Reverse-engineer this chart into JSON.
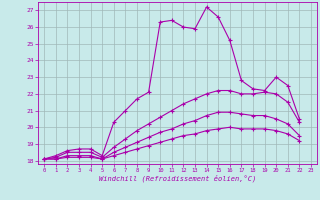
{
  "xlabel": "Windchill (Refroidissement éolien,°C)",
  "bg_color": "#c8eaea",
  "grid_color": "#a0b8b8",
  "line_color": "#aa00aa",
  "ylim": [
    17.8,
    27.5
  ],
  "xlim": [
    -0.5,
    23.5
  ],
  "yticks": [
    18,
    19,
    20,
    21,
    22,
    23,
    24,
    25,
    26,
    27
  ],
  "xticks": [
    0,
    1,
    2,
    3,
    4,
    5,
    6,
    7,
    8,
    9,
    10,
    11,
    12,
    13,
    14,
    15,
    16,
    17,
    18,
    19,
    20,
    21,
    22,
    23
  ],
  "series": [
    {
      "x": [
        0,
        1,
        2,
        3,
        4,
        5,
        6,
        7,
        8,
        9,
        10,
        11,
        12,
        13,
        14,
        15,
        16,
        17,
        18,
        19,
        20,
        21,
        22
      ],
      "y": [
        18.1,
        18.3,
        18.6,
        18.7,
        18.7,
        18.3,
        20.3,
        21.0,
        21.7,
        22.1,
        26.3,
        26.4,
        26.0,
        25.9,
        27.2,
        26.6,
        25.2,
        22.8,
        22.3,
        22.2,
        23.0,
        22.5,
        20.5
      ]
    },
    {
      "x": [
        0,
        1,
        2,
        3,
        4,
        5,
        6,
        7,
        8,
        9,
        10,
        11,
        12,
        13,
        14,
        15,
        16,
        17,
        18,
        19,
        20,
        21,
        22
      ],
      "y": [
        18.1,
        18.2,
        18.5,
        18.5,
        18.5,
        18.2,
        18.8,
        19.3,
        19.8,
        20.2,
        20.6,
        21.0,
        21.4,
        21.7,
        22.0,
        22.2,
        22.2,
        22.0,
        22.0,
        22.1,
        22.0,
        21.5,
        20.3
      ]
    },
    {
      "x": [
        0,
        1,
        2,
        3,
        4,
        5,
        6,
        7,
        8,
        9,
        10,
        11,
        12,
        13,
        14,
        15,
        16,
        17,
        18,
        19,
        20,
        21,
        22
      ],
      "y": [
        18.1,
        18.1,
        18.3,
        18.3,
        18.3,
        18.1,
        18.5,
        18.8,
        19.1,
        19.4,
        19.7,
        19.9,
        20.2,
        20.4,
        20.7,
        20.9,
        20.9,
        20.8,
        20.7,
        20.7,
        20.5,
        20.2,
        19.5
      ]
    },
    {
      "x": [
        0,
        1,
        2,
        3,
        4,
        5,
        6,
        7,
        8,
        9,
        10,
        11,
        12,
        13,
        14,
        15,
        16,
        17,
        18,
        19,
        20,
        21,
        22
      ],
      "y": [
        18.1,
        18.1,
        18.2,
        18.2,
        18.2,
        18.1,
        18.3,
        18.5,
        18.7,
        18.9,
        19.1,
        19.3,
        19.5,
        19.6,
        19.8,
        19.9,
        20.0,
        19.9,
        19.9,
        19.9,
        19.8,
        19.6,
        19.2
      ]
    }
  ],
  "marker": "+",
  "markersize": 3,
  "linewidth": 0.8
}
